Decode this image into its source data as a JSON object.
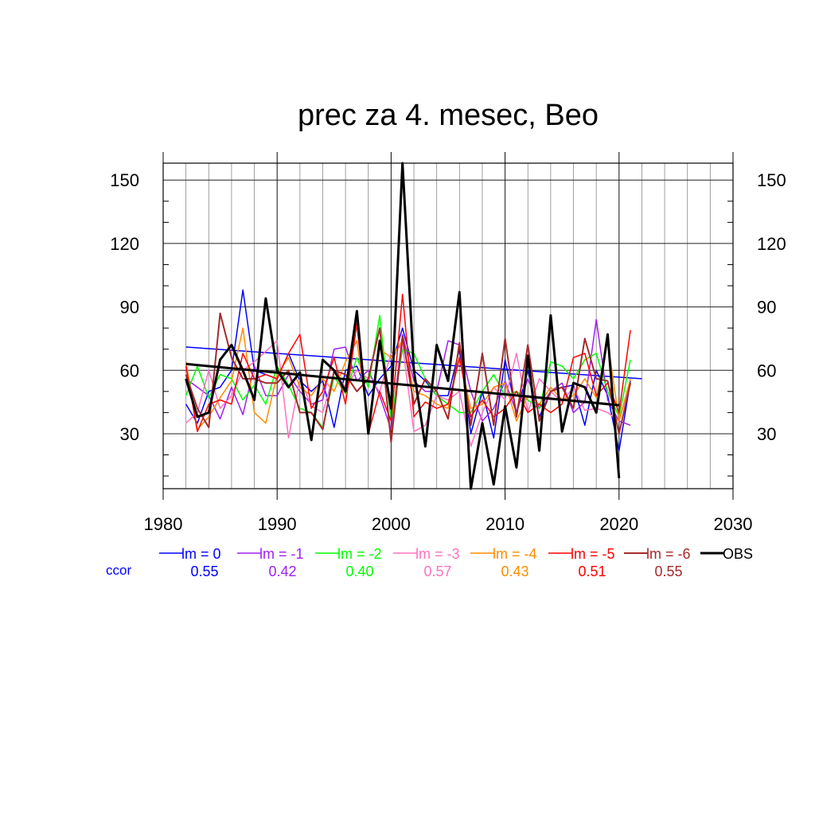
{
  "chart_data": {
    "type": "line",
    "title": "prec za 4. mesec, Beo",
    "xlim": [
      1980,
      2030
    ],
    "ylim": [
      4,
      158
    ],
    "x_ticks": [
      1980,
      1990,
      2000,
      2010,
      2020,
      2030
    ],
    "y_ticks": [
      30,
      60,
      90,
      120,
      150
    ],
    "grid": true,
    "legend_position": "bottom",
    "ccor_label": "ccor",
    "x": [
      1982,
      1983,
      1984,
      1985,
      1986,
      1987,
      1988,
      1989,
      1990,
      1991,
      1992,
      1993,
      1994,
      1995,
      1996,
      1997,
      1998,
      1999,
      2000,
      2001,
      2002,
      2003,
      2004,
      2005,
      2006,
      2007,
      2008,
      2009,
      2010,
      2011,
      2012,
      2013,
      2014,
      2015,
      2016,
      2017,
      2018,
      2019,
      2020,
      2021
    ],
    "series": [
      {
        "name": "lm = 0",
        "color": "#0000ff",
        "ccor": "0.55",
        "width": 1.5,
        "values": [
          44,
          35,
          50,
          52,
          60,
          98,
          60,
          58,
          56,
          68,
          55,
          50,
          55,
          33,
          60,
          62,
          48,
          56,
          62,
          80,
          60,
          55,
          48,
          48,
          70,
          30,
          50,
          28,
          65,
          40,
          60,
          38,
          50,
          52,
          53,
          34,
          60,
          48,
          22,
          55
        ],
        "trend": [
          71,
          56
        ]
      },
      {
        "name": "lm = -1",
        "color": "#a020f0",
        "ccor": "0.42",
        "width": 1.5,
        "values": [
          56,
          52,
          48,
          37,
          52,
          39,
          62,
          48,
          48,
          58,
          50,
          44,
          46,
          70,
          71,
          55,
          60,
          48,
          32,
          77,
          55,
          50,
          50,
          74,
          72,
          50,
          36,
          42,
          55,
          40,
          56,
          42,
          50,
          54,
          40,
          45,
          84,
          46,
          36,
          34
        ],
        "trend": null
      },
      {
        "name": "lm = -2",
        "color": "#00ff00",
        "ccor": "0.40",
        "width": 1.5,
        "values": [
          48,
          62,
          47,
          58,
          56,
          46,
          53,
          44,
          62,
          53,
          42,
          40,
          33,
          57,
          49,
          66,
          52,
          86,
          36,
          70,
          68,
          56,
          48,
          44,
          40,
          40,
          50,
          58,
          48,
          50,
          46,
          42,
          64,
          62,
          56,
          65,
          68,
          50,
          38,
          65
        ],
        "trend": null
      },
      {
        "name": "lm = -3",
        "color": "#ff70c0",
        "ccor": "0.57",
        "width": 1.5,
        "values": [
          35,
          40,
          60,
          42,
          48,
          60,
          64,
          69,
          74,
          28,
          56,
          43,
          40,
          59,
          52,
          60,
          56,
          50,
          68,
          72,
          31,
          34,
          48,
          46,
          50,
          24,
          40,
          52,
          46,
          68,
          40,
          56,
          50,
          45,
          52,
          41,
          42,
          40,
          36,
          54
        ],
        "trend": null
      },
      {
        "name": "lm = -4",
        "color": "#ff8c00",
        "ccor": "0.43",
        "width": 1.5,
        "values": [
          64,
          32,
          38,
          47,
          55,
          80,
          40,
          35,
          58,
          66,
          52,
          48,
          56,
          50,
          64,
          74,
          34,
          70,
          66,
          74,
          50,
          48,
          44,
          42,
          66,
          42,
          44,
          52,
          54,
          36,
          48,
          44,
          52,
          46,
          48,
          56,
          47,
          74,
          36,
          56
        ],
        "trend": null
      },
      {
        "name": "lm = -5",
        "color": "#ff0000",
        "ccor": "0.51",
        "width": 1.5,
        "values": [
          62,
          31,
          44,
          46,
          44,
          68,
          56,
          58,
          56,
          68,
          77,
          42,
          50,
          66,
          44,
          82,
          30,
          50,
          36,
          96,
          38,
          45,
          42,
          44,
          66,
          38,
          46,
          38,
          42,
          50,
          40,
          44,
          40,
          44,
          66,
          68,
          48,
          54,
          40,
          79
        ],
        "trend": null
      },
      {
        "name": "lm = -6",
        "color": "#a52a2a",
        "ccor": "0.55",
        "width": 2,
        "values": [
          58,
          42,
          33,
          87,
          66,
          56,
          56,
          54,
          54,
          60,
          40,
          40,
          32,
          60,
          58,
          50,
          56,
          80,
          26,
          76,
          44,
          56,
          50,
          37,
          73,
          34,
          68,
          34,
          75,
          38,
          72,
          36,
          50,
          52,
          42,
          75,
          56,
          55,
          30,
          54
        ],
        "trend": null
      },
      {
        "name": "OBS",
        "color": "#000000",
        "ccor": null,
        "width": 3,
        "values": [
          56,
          38,
          40,
          65,
          72,
          60,
          46,
          94,
          60,
          52,
          59,
          27,
          65,
          60,
          50,
          88,
          30,
          74,
          42,
          158,
          60,
          24,
          72,
          55,
          97,
          4,
          35,
          6,
          43,
          14,
          67,
          22,
          86,
          31,
          54,
          52,
          40,
          77,
          9,
          null
        ],
        "trend": [
          63,
          43.5
        ]
      }
    ]
  }
}
